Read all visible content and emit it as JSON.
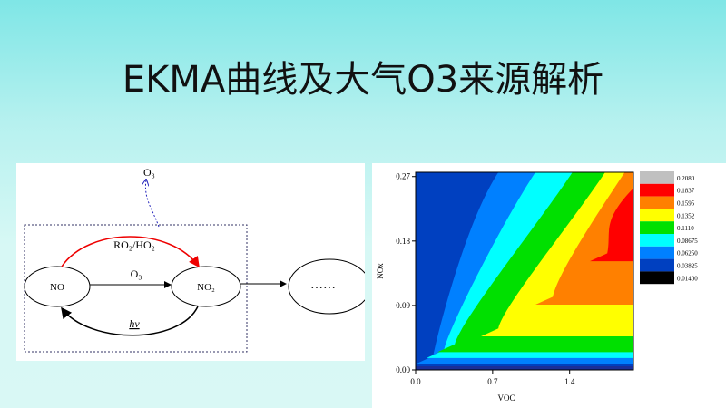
{
  "header": {
    "title": "EKMA曲线及大气O3来源解析"
  },
  "diagram": {
    "top_label": "O₃",
    "nodes": [
      {
        "label": "NO"
      },
      {
        "label": "NO₂"
      },
      {
        "label": "……"
      }
    ],
    "edges": [
      {
        "label": "RO₂/HO₂"
      },
      {
        "label": "O₃"
      },
      {
        "label": "hv"
      }
    ]
  },
  "chart_data": {
    "type": "contour",
    "xlabel": "VOC",
    "ylabel": "NOx",
    "xlim": [
      0,
      1.98
    ],
    "ylim": [
      0,
      0.276
    ],
    "xticks": [
      {
        "value": 0,
        "label": "0.0"
      },
      0.7,
      1.4
    ],
    "yticks": [
      {
        "value": 0,
        "label": "0.00"
      },
      {
        "value": 0.09,
        "label": "0.09"
      },
      {
        "value": 0.18,
        "label": "0.18"
      },
      {
        "value": 0.27,
        "label": "0.27"
      }
    ],
    "levels": [
      {
        "value": 0.208,
        "label": "0.2080",
        "color": "#c0c0c0"
      },
      {
        "value": 0.1837,
        "label": "0.1837",
        "color": "#ff0000"
      },
      {
        "value": 0.1595,
        "label": "0.1595",
        "color": "#ff8000"
      },
      {
        "value": 0.1352,
        "label": "0.1352",
        "color": "#ffff00"
      },
      {
        "value": 0.111,
        "label": "0.1110",
        "color": "#00e000"
      },
      {
        "value": 0.08675,
        "label": "0.08675",
        "color": "#00ffff"
      },
      {
        "value": 0.0625,
        "label": "0.06250",
        "color": "#0080ff"
      },
      {
        "value": 0.03825,
        "label": "0.03825",
        "color": "#0040c0"
      },
      {
        "value": 0.014,
        "label": "0.01400",
        "color": "#000000"
      }
    ]
  }
}
